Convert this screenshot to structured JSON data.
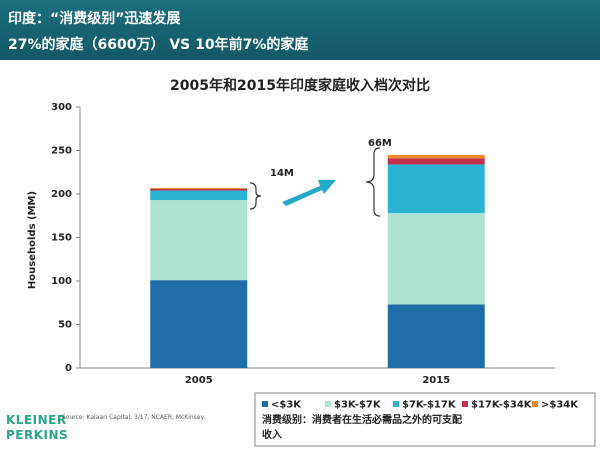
{
  "header": {
    "title": "印度：“消费级别”迅速发展",
    "subtitle": "27%的家庭（6600万） VS  10年前7%的家庭"
  },
  "chart_data": {
    "type": "bar",
    "stacked": true,
    "title": "2005年和2015年印度家庭收入档次对比",
    "y_label": "Households (MM)",
    "categories": [
      "2005",
      "2015"
    ],
    "series": [
      {
        "name": "<$3K",
        "color": "#1f6ea8",
        "values": [
          101,
          73
        ]
      },
      {
        "name": "$3K-$7K",
        "color": "#aee3d2",
        "values": [
          92,
          105
        ]
      },
      {
        "name": "$7K-$17K",
        "color": "#2ab3d3",
        "values": [
          11,
          56
        ]
      },
      {
        "name": "$17K-$34K",
        "color": "#c3304b",
        "values": [
          2,
          7
        ]
      },
      {
        "name": ">$34K",
        "color": "#f08a30",
        "values": [
          1,
          4
        ]
      }
    ],
    "annotations": [
      "14M",
      "66M"
    ],
    "ylim": [
      0,
      300
    ],
    "yticks": [
      0,
      50,
      100,
      150,
      200,
      250,
      300
    ],
    "grid": false,
    "legend": "bottom",
    "note": "消费级别：消费者在生活必需品之外的可支配收入"
  },
  "footer": {
    "source": "Source: Kalaari Capital, 3/17, NCAER, McKinsey.",
    "logo": [
      "KLEINER",
      "PERKINS"
    ]
  }
}
